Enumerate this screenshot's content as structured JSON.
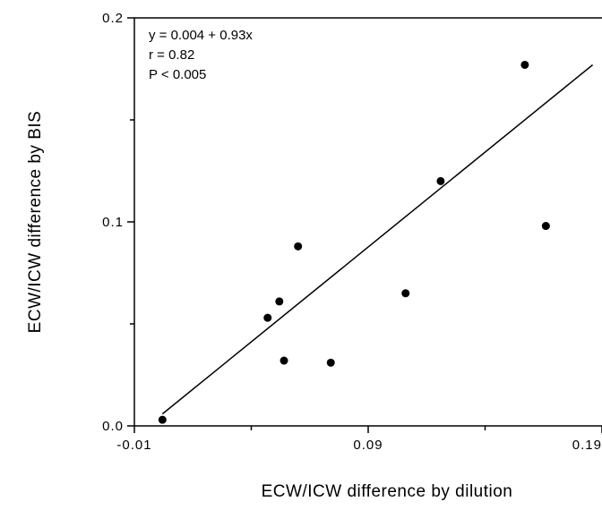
{
  "chart_data": {
    "type": "scatter",
    "title": "",
    "xlabel": "ECW/ICW  difference  by  dilution",
    "ylabel": "ECW/ICW  difference  by  BIS",
    "xlim": [
      -0.01,
      0.19
    ],
    "ylim": [
      0.0,
      0.2
    ],
    "xticks": [
      -0.01,
      0.09,
      0.19
    ],
    "xtick_labels": [
      "-0.01",
      "0.09",
      "0.19"
    ],
    "yticks": [
      0.0,
      0.1,
      0.2
    ],
    "ytick_labels": [
      "0.0",
      "0.1",
      "0.2"
    ],
    "grid": false,
    "points": [
      {
        "x": 0.002,
        "y": 0.003
      },
      {
        "x": 0.047,
        "y": 0.053
      },
      {
        "x": 0.052,
        "y": 0.061
      },
      {
        "x": 0.054,
        "y": 0.032
      },
      {
        "x": 0.06,
        "y": 0.088
      },
      {
        "x": 0.074,
        "y": 0.031
      },
      {
        "x": 0.106,
        "y": 0.065
      },
      {
        "x": 0.121,
        "y": 0.12
      },
      {
        "x": 0.157,
        "y": 0.177
      },
      {
        "x": 0.166,
        "y": 0.098
      }
    ],
    "fit_line": {
      "intercept": 0.004,
      "slope": 0.93,
      "x_range": [
        0.002,
        0.186
      ]
    },
    "annotations": [
      "y  =  0.004  +  0.93x",
      "r  =  0.82",
      "P  <  0.005"
    ]
  }
}
